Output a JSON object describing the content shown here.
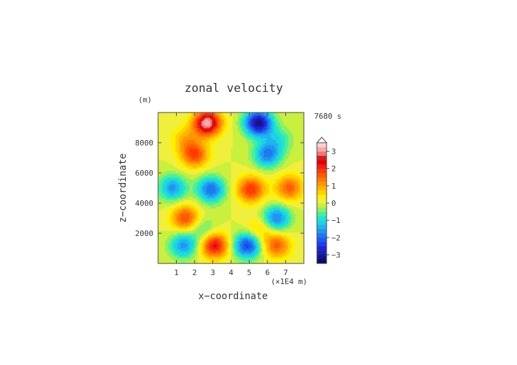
{
  "chart_data": {
    "type": "heatmap",
    "title": "zonal velocity",
    "time_label": "7680 s",
    "xlabel": "x−coordinate",
    "ylabel": "z−coordinate",
    "x_unit_label": "(×1E4 m)",
    "y_unit_label": "(m)",
    "xlim": [
      0,
      8
    ],
    "ylim": [
      0,
      10000
    ],
    "x_ticks": [
      "1",
      "2",
      "3",
      "4",
      "5",
      "6",
      "7"
    ],
    "y_ticks": [
      "2000",
      "4000",
      "6000",
      "8000"
    ],
    "colorbar": {
      "tick_labels": [
        "3",
        "2",
        "1",
        "0",
        "−1",
        "−2",
        "−3"
      ],
      "levels": [
        -3.5,
        -3.25,
        -3,
        -2.75,
        -2.5,
        -2.25,
        -2,
        -1.75,
        -1.5,
        -1.25,
        -1,
        -0.75,
        -0.5,
        -0.25,
        0,
        0.25,
        0.5,
        0.75,
        1,
        1.25,
        1.5,
        1.75,
        2,
        2.25,
        2.5,
        2.75,
        3,
        3.25,
        3.5
      ],
      "colors": [
        "#0a0a6e",
        "#14148c",
        "#1e1eb4",
        "#2323d2",
        "#1e3cf0",
        "#1e5af0",
        "#1e78f0",
        "#1e96f0",
        "#1eb4f0",
        "#1ed2e6",
        "#1ee6c8",
        "#46f0a0",
        "#8cf064",
        "#c8f03c",
        "#f0f03c",
        "#fff000",
        "#ffd200",
        "#ffb400",
        "#ff9600",
        "#ff7800",
        "#ff5a00",
        "#ff3c00",
        "#f01e1e",
        "#e60000",
        "#d21e1e",
        "#f07878",
        "#f5aaaa",
        "#fad2d2"
      ],
      "extend": "max"
    },
    "field_features": [
      {
        "x": 2.7,
        "z": 9300,
        "value": 3.2
      },
      {
        "x": 5.5,
        "z": 9300,
        "value": -3.2
      },
      {
        "x": 2.0,
        "z": 7200,
        "value": 1.8
      },
      {
        "x": 6.0,
        "z": 7200,
        "value": -1.8
      },
      {
        "x": 1.5,
        "z": 8200,
        "value": 0.8
      },
      {
        "x": 6.6,
        "z": 8200,
        "value": -0.8
      },
      {
        "x": 2.9,
        "z": 4900,
        "value": -2.0
      },
      {
        "x": 5.1,
        "z": 4900,
        "value": 2.0
      },
      {
        "x": 0.8,
        "z": 5000,
        "value": -1.6
      },
      {
        "x": 7.2,
        "z": 5000,
        "value": 1.6
      },
      {
        "x": 1.5,
        "z": 3000,
        "value": 1.8
      },
      {
        "x": 6.5,
        "z": 3000,
        "value": -1.8
      },
      {
        "x": 1.4,
        "z": 1200,
        "value": -1.6
      },
      {
        "x": 6.5,
        "z": 1200,
        "value": 1.6
      },
      {
        "x": 3.1,
        "z": 1200,
        "value": 2.4
      },
      {
        "x": 4.9,
        "z": 1200,
        "value": -2.4
      },
      {
        "x": 2.5,
        "z": 2200,
        "value": -0.8
      },
      {
        "x": 5.5,
        "z": 2200,
        "value": 0.8
      }
    ]
  }
}
